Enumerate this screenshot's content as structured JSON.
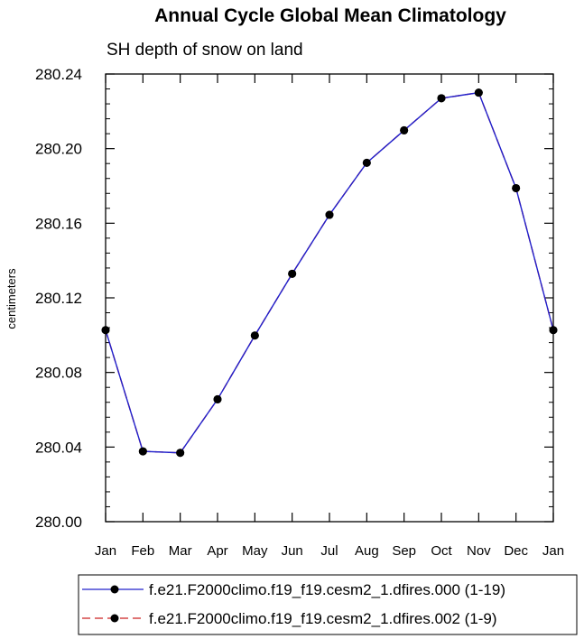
{
  "chart_data": {
    "type": "line",
    "title": "Annual Cycle Global Mean Climatology",
    "subtitle": "SH depth of snow on land",
    "xlabel": "",
    "ylabel": "centimeters",
    "categories": [
      "Jan",
      "Feb",
      "Mar",
      "Apr",
      "May",
      "Jun",
      "Jul",
      "Aug",
      "Sep",
      "Oct",
      "Nov",
      "Dec",
      "Jan"
    ],
    "ylim": [
      280.0,
      280.24
    ],
    "yticks": [
      "280.00",
      "280.04",
      "280.08",
      "280.12",
      "280.16",
      "280.20",
      "280.24"
    ],
    "grid": false,
    "legend_position": "bottom",
    "series": [
      {
        "name": "f.e21.F2000climo.f19_f19.cesm2_1.dfires.000 (1-19)",
        "color": "#2020cc",
        "line_style": "solid",
        "marker": "filled-circle",
        "values": [
          280.1027,
          280.0377,
          280.0369,
          280.0656,
          280.0998,
          280.1329,
          280.1645,
          280.1924,
          280.2098,
          280.227,
          280.23,
          280.1788,
          280.1027
        ]
      },
      {
        "name": "f.e21.F2000climo.f19_f19.cesm2_1.dfires.002 (1-9)",
        "color": "#cc2020",
        "line_style": "dashed",
        "marker": "filled-circle",
        "values": [
          280.1027,
          280.0377,
          280.0369,
          280.0656,
          280.0998,
          280.1329,
          280.1645,
          280.1924,
          280.2098,
          280.227,
          280.23,
          280.1788,
          280.1027
        ]
      }
    ]
  }
}
